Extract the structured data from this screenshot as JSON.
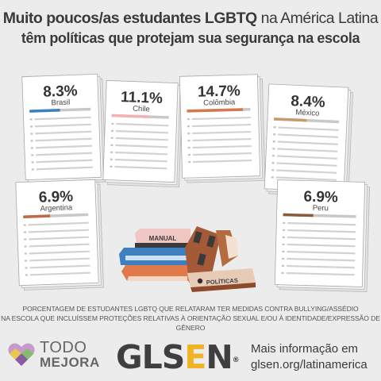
{
  "header": {
    "title_part1": "Muito poucos/as estudantes LGBTQ",
    "title_part2": "na América Latina",
    "title_line2": "têm políticas que protejam sua segurança na escola"
  },
  "chart_data": {
    "type": "bar",
    "categories": [
      "Brasil",
      "Chile",
      "Colômbia",
      "México",
      "Argentina",
      "Peru"
    ],
    "values": [
      8.3,
      11.1,
      14.7,
      8.4,
      6.9,
      6.9
    ],
    "value_labels": [
      "8.3%",
      "11.1%",
      "14.7%",
      "8.4%",
      "6.9%",
      "6.9%"
    ],
    "ylim": [
      0,
      100
    ],
    "colors": [
      "#3c7fc2",
      "#f2b2b0",
      "#d7774d",
      "#c79a6d",
      "#c06a45",
      "#8b5a3c"
    ],
    "title": "Muito poucos/as estudantes LGBTQ na América Latina têm políticas que protejam sua segurança na escola",
    "xlabel": "",
    "ylabel": ""
  },
  "illustration": {
    "book_label": "MANUAL",
    "policy_label": "POLÍTICAS"
  },
  "caption": {
    "line1": "PORCENTAGEM DE ESTUDANTES LGBTQ QUE RELATARAM TER MEDIDAS CONTRA BULLYING/ASSÉDIO",
    "line2": "NA ESCOLA QUE  INCLUÍSSEM PROTEÇÕES RELATIVAS À ORIENTAÇÃO SEXUAL E/OU À IDENTIDADE/EXPRESSÃO DE GÊNERO"
  },
  "footer": {
    "todo_line1": "TODO",
    "todo_line2": "MEJORA",
    "glsen_part1": "GLS",
    "glsen_part2": "E",
    "glsen_part3": "N",
    "glsen_reg": "®",
    "more_line1": "Mais informação em",
    "more_line2": "glsen.org/latinamerica"
  }
}
